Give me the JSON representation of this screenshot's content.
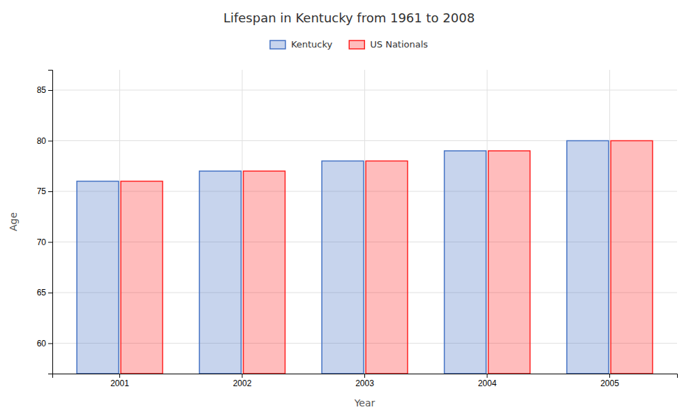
{
  "chart_data": {
    "type": "bar",
    "title": "Lifespan in Kentucky from 1961 to 2008",
    "x_label": "Year",
    "y_label": "Age",
    "categories": [
      "2001",
      "2002",
      "2003",
      "2004",
      "2005"
    ],
    "series": [
      {
        "name": "Kentucky",
        "color": "#4472c4",
        "values": [
          76,
          77,
          78,
          79,
          80
        ]
      },
      {
        "name": "US Nationals",
        "color": "#ff2020",
        "values": [
          76,
          77,
          78,
          79,
          80
        ]
      }
    ],
    "ylim": [
      57,
      87
    ],
    "yticks": [
      60,
      65,
      70,
      75,
      80,
      85
    ],
    "grid": true,
    "legend": "top"
  }
}
